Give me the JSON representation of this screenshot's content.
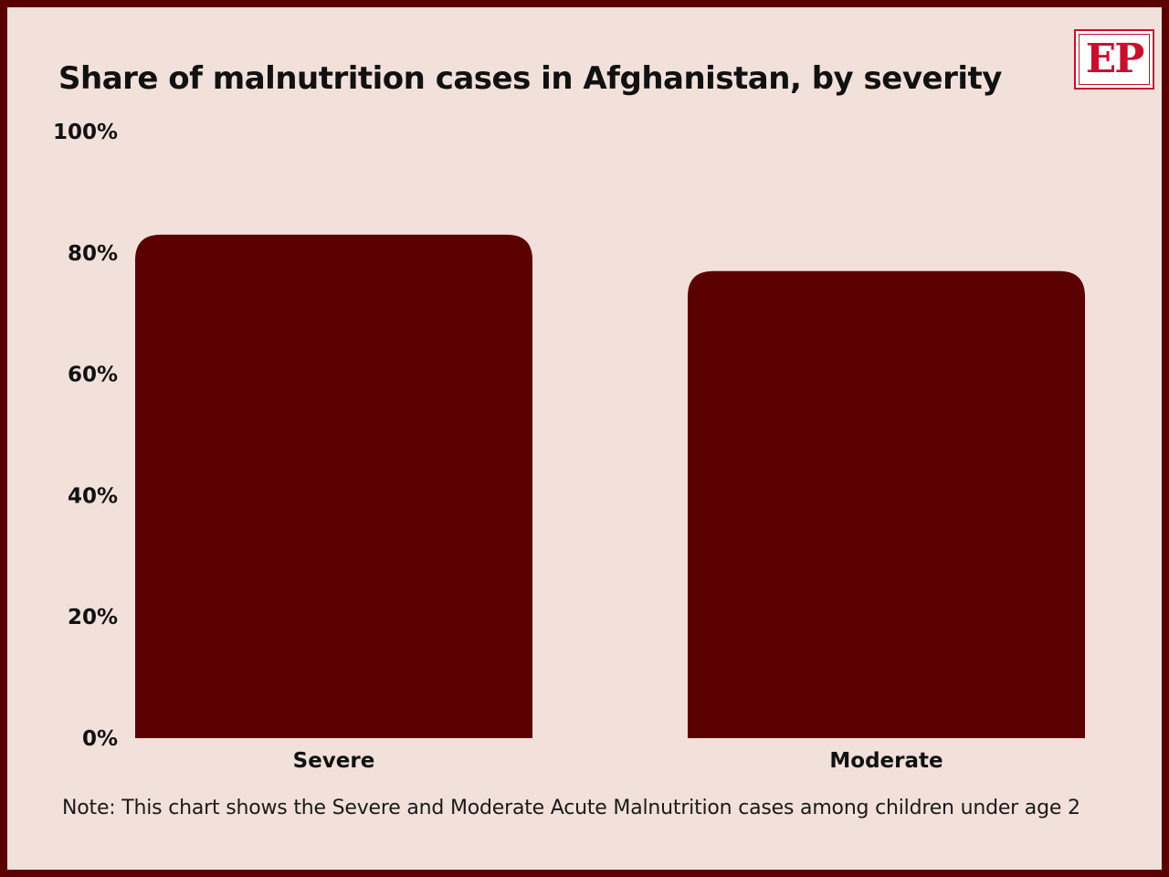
{
  "title": "Share of malnutrition cases in Afghanistan, by severity",
  "logo": {
    "text": "EP"
  },
  "note": "Note: This chart shows the Severe and Moderate Acute Malnutrition cases among children under age 2",
  "colors": {
    "background": "#f2e0da",
    "frame": "#5a0000",
    "bar": "#5a0000",
    "logo": "#c8102e"
  },
  "chart_data": {
    "type": "bar",
    "categories": [
      "Severe",
      "Moderate"
    ],
    "values": [
      83,
      77
    ],
    "ylim": [
      0,
      100
    ],
    "yticks": [
      0,
      20,
      40,
      60,
      80,
      100
    ],
    "ytick_labels": [
      "0%",
      "20%",
      "40%",
      "60%",
      "80%",
      "100%"
    ],
    "xlabel": "",
    "ylabel": "",
    "grid": false,
    "legend": "none"
  }
}
